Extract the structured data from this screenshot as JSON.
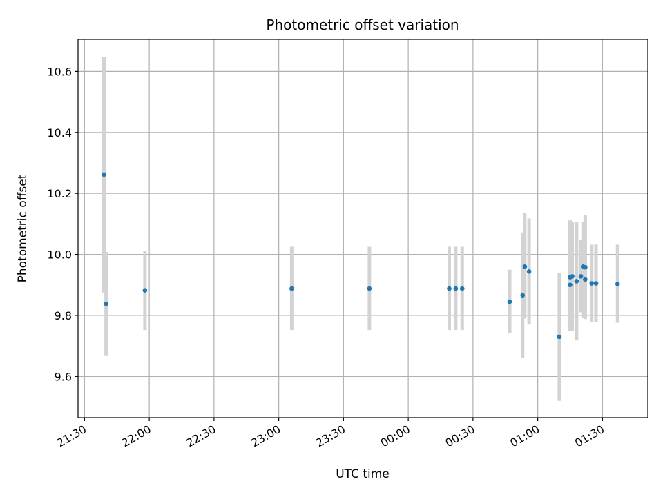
{
  "chart_data": {
    "type": "scatter",
    "title": "Photometric offset variation",
    "xlabel": "UTC time",
    "ylabel": "Photometric offset",
    "grid": true,
    "xlim": [
      "2000-01-01 21:27",
      "2000-01-02 01:51"
    ],
    "ylim": [
      9.465,
      10.705
    ],
    "x_tick_labels": [
      "21:30",
      "22:00",
      "22:30",
      "23:00",
      "23:30",
      "00:00",
      "00:30",
      "01:00",
      "01:30"
    ],
    "x_ticks": [
      "2000-01-01 21:30",
      "2000-01-01 22:00",
      "2000-01-01 22:30",
      "2000-01-01 23:00",
      "2000-01-01 23:30",
      "2000-01-02 00:00",
      "2000-01-02 00:30",
      "2000-01-02 01:00",
      "2000-01-02 01:30"
    ],
    "y_ticks": [
      9.6,
      9.8,
      10.0,
      10.2,
      10.4,
      10.6
    ],
    "y_tick_labels": [
      "9.6",
      "9.8",
      "10.0",
      "10.2",
      "10.4",
      "10.6"
    ],
    "colors": {
      "point": "#1f77b4",
      "errorbar": "#d3d3d3",
      "grid": "#b0b0b0"
    },
    "series": [
      {
        "x": [
          "2000-01-01 21:39",
          "2000-01-01 21:40",
          "2000-01-01 21:58",
          "2000-01-01 23:06",
          "2000-01-01 23:42",
          "2000-01-02 00:19",
          "2000-01-02 00:22",
          "2000-01-02 00:25",
          "2000-01-02 00:47",
          "2000-01-02 00:53",
          "2000-01-02 00:54",
          "2000-01-02 00:56",
          "2000-01-02 01:10",
          "2000-01-02 01:15",
          "2000-01-02 01:15",
          "2000-01-02 01:16",
          "2000-01-02 01:18",
          "2000-01-02 01:20",
          "2000-01-02 01:21",
          "2000-01-02 01:22",
          "2000-01-02 01:22",
          "2000-01-02 01:25",
          "2000-01-02 01:27",
          "2000-01-02 01:37"
        ],
        "y": [
          10.262,
          9.838,
          9.882,
          9.888,
          9.888,
          9.888,
          9.888,
          9.888,
          9.845,
          9.866,
          9.96,
          9.944,
          9.73,
          9.9,
          9.925,
          9.928,
          9.912,
          9.928,
          9.96,
          9.958,
          9.918,
          9.905,
          9.905,
          9.903
        ],
        "err_low": [
          9.875,
          9.667,
          9.752,
          9.752,
          9.752,
          9.752,
          9.752,
          9.752,
          9.742,
          9.662,
          9.79,
          9.77,
          9.52,
          9.752,
          9.748,
          9.748,
          9.718,
          9.81,
          9.792,
          9.788,
          9.79,
          9.778,
          9.778,
          9.776
        ],
        "err_high": [
          10.648,
          10.008,
          10.012,
          10.025,
          10.025,
          10.025,
          10.025,
          10.025,
          9.95,
          10.072,
          10.137,
          10.118,
          9.94,
          10.048,
          10.112,
          10.108,
          10.105,
          10.048,
          10.108,
          10.128,
          10.048,
          10.032,
          10.032,
          10.032
        ]
      }
    ]
  }
}
